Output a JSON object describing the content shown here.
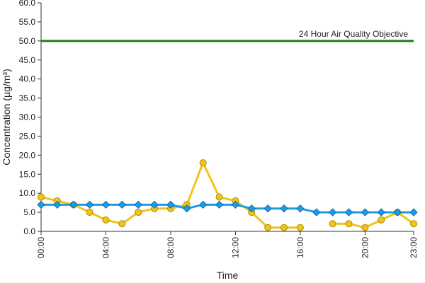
{
  "chart_data": {
    "type": "line",
    "xlabel": "Time",
    "ylabel": "Concentration (µg/m³)",
    "ylim": [
      0,
      60
    ],
    "y_ticks": [
      "0.0",
      "5.0",
      "10.0",
      "15.0",
      "20.0",
      "25.0",
      "30.0",
      "35.0",
      "40.0",
      "45.0",
      "50.0",
      "55.0",
      "60.0"
    ],
    "x_tick_labels": [
      "00:00",
      "04:00",
      "08:00",
      "12:00",
      "16:00",
      "20:00",
      "23:00"
    ],
    "x_tick_hours": [
      0,
      4,
      8,
      12,
      16,
      20,
      23
    ],
    "x": [
      0,
      1,
      2,
      3,
      4,
      5,
      6,
      7,
      8,
      9,
      10,
      11,
      12,
      13,
      14,
      15,
      16,
      17,
      18,
      19,
      20,
      21,
      22,
      23
    ],
    "grid": false,
    "reference_line": {
      "value": 50,
      "label": "24 Hour Air Quality Objective",
      "color": "#1e7a1e"
    },
    "series": [
      {
        "color": "#f0c419",
        "values": [
          9,
          8,
          7,
          5,
          3,
          2,
          5,
          6,
          6,
          7,
          18,
          9,
          8,
          5,
          1,
          1,
          1,
          null,
          2,
          2,
          1,
          3,
          5,
          2
        ]
      },
      {
        "color": "#1e9be6",
        "values": [
          7,
          7,
          7,
          7,
          7,
          7,
          7,
          7,
          7,
          6,
          7,
          7,
          7,
          6,
          6,
          6,
          6,
          5,
          5,
          5,
          5,
          5,
          5,
          5
        ]
      }
    ]
  }
}
